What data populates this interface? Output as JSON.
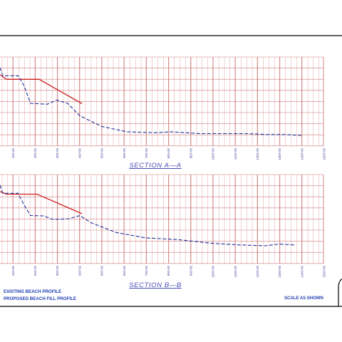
{
  "sections": [
    {
      "title": "SECTION  A—A",
      "tick_labels": [
        "100+00",
        "200+00",
        "300+00",
        "400+00",
        "500+00",
        "600+00",
        "700+00",
        "800+00",
        "900+00",
        "1000+00",
        "1100+00",
        "1200+00",
        "1300+00",
        "1400+00",
        "1500+00"
      ],
      "existing_profile": [
        [
          0,
          0.0
        ],
        [
          40,
          0.45
        ],
        [
          250,
          0.45
        ],
        [
          330,
          1.0
        ],
        [
          420,
          2.0
        ],
        [
          650,
          2.05
        ],
        [
          780,
          1.82
        ],
        [
          930,
          2.0
        ],
        [
          1100,
          2.7
        ],
        [
          1400,
          3.3
        ],
        [
          1750,
          3.6
        ],
        [
          2150,
          3.65
        ],
        [
          2350,
          3.6
        ],
        [
          2750,
          3.7
        ],
        [
          3050,
          3.7
        ],
        [
          3400,
          3.7
        ],
        [
          3650,
          3.75
        ],
        [
          3900,
          3.75
        ],
        [
          4150,
          3.8
        ]
      ],
      "proposed_fill": [
        [
          0,
          0.4
        ],
        [
          90,
          0.65
        ],
        [
          540,
          0.65
        ],
        [
          1130,
          2.02
        ]
      ]
    },
    {
      "title": "SECTION  B—B",
      "tick_labels": [
        "100+00",
        "200+00",
        "300+00",
        "400+00",
        "500+00",
        "600+00",
        "700+00",
        "800+00",
        "900+00",
        "1000+00",
        "1100+00",
        "1200+00",
        "1300+00",
        "1400+00",
        "1500+00"
      ],
      "existing_profile": [
        [
          0,
          0.0
        ],
        [
          40,
          0.45
        ],
        [
          250,
          0.45
        ],
        [
          330,
          1.1
        ],
        [
          420,
          1.7
        ],
        [
          600,
          1.72
        ],
        [
          730,
          1.92
        ],
        [
          950,
          1.88
        ],
        [
          1100,
          1.7
        ],
        [
          1250,
          2.1
        ],
        [
          1600,
          2.65
        ],
        [
          2000,
          2.95
        ],
        [
          2450,
          3.05
        ],
        [
          2900,
          3.25
        ],
        [
          3300,
          3.35
        ],
        [
          3650,
          3.4
        ],
        [
          3850,
          3.3
        ],
        [
          4050,
          3.35
        ]
      ],
      "proposed_fill": [
        [
          0,
          0.35
        ],
        [
          90,
          0.5
        ],
        [
          510,
          0.5
        ],
        [
          1130,
          1.6
        ]
      ]
    }
  ],
  "legend": {
    "existing": "EXISTING BEACH PROFILE",
    "proposed": "PROPOSED BEACH FILL PROFILE"
  },
  "scale_note": "SCALE AS SHOWN",
  "colors": {
    "existing_profile": "#1b2f9a",
    "proposed_fill": "#cc2020",
    "grid": "#e0a6a6",
    "section_title": "#4a50b8",
    "legend_text": "#1f3fb4"
  }
}
